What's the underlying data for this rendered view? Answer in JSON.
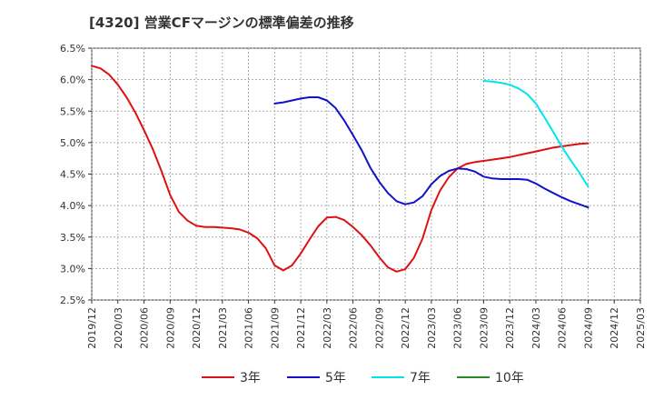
{
  "title": "[4320]  営業CFマージンの標準偏差の推移",
  "chart_data": {
    "type": "line",
    "title": "[4320]  営業CFマージンの標準偏差の推移",
    "xlabel": "",
    "ylabel": "",
    "ylim": [
      2.5,
      6.5
    ],
    "yticks": [
      "6.5%",
      "6.0%",
      "5.5%",
      "5.0%",
      "4.5%",
      "4.0%",
      "3.5%",
      "3.0%",
      "2.5%"
    ],
    "ytick_values": [
      6.5,
      6.0,
      5.5,
      5.0,
      4.5,
      4.0,
      3.5,
      3.0,
      2.5
    ],
    "xticks": [
      "2019/12",
      "2020/03",
      "2020/06",
      "2020/09",
      "2020/12",
      "2021/03",
      "2021/06",
      "2021/09",
      "2021/12",
      "2022/03",
      "2022/06",
      "2022/09",
      "2022/12",
      "2023/03",
      "2023/06",
      "2023/09",
      "2023/12",
      "2024/03",
      "2024/06",
      "2024/09",
      "2024/12",
      "2025/03"
    ],
    "grid": true,
    "legend_position": "bottom",
    "series": [
      {
        "name": "3年",
        "color": "#dd1111",
        "x": [
          "2019/12",
          "2020/01",
          "2020/02",
          "2020/03",
          "2020/04",
          "2020/05",
          "2020/06",
          "2020/07",
          "2020/08",
          "2020/09",
          "2020/10",
          "2020/11",
          "2020/12",
          "2021/01",
          "2021/02",
          "2021/03",
          "2021/04",
          "2021/05",
          "2021/06",
          "2021/07",
          "2021/08",
          "2021/09",
          "2021/10",
          "2021/11",
          "2021/12",
          "2022/01",
          "2022/02",
          "2022/03",
          "2022/04",
          "2022/05",
          "2022/06",
          "2022/07",
          "2022/08",
          "2022/09",
          "2022/10",
          "2022/11",
          "2022/12",
          "2023/01",
          "2023/02",
          "2023/03",
          "2023/04",
          "2023/05",
          "2023/06",
          "2023/07",
          "2023/08",
          "2023/09",
          "2023/10",
          "2023/11",
          "2023/12",
          "2024/01",
          "2024/02",
          "2024/03",
          "2024/04",
          "2024/05",
          "2024/06",
          "2024/07",
          "2024/08",
          "2024/09"
        ],
        "values": [
          6.22,
          6.18,
          6.08,
          5.92,
          5.72,
          5.48,
          5.2,
          4.9,
          4.55,
          4.17,
          3.9,
          3.76,
          3.68,
          3.66,
          3.66,
          3.65,
          3.64,
          3.62,
          3.57,
          3.48,
          3.32,
          3.05,
          2.97,
          3.05,
          3.24,
          3.46,
          3.67,
          3.81,
          3.82,
          3.77,
          3.66,
          3.53,
          3.37,
          3.18,
          3.02,
          2.95,
          2.99,
          3.17,
          3.48,
          3.93,
          4.24,
          4.45,
          4.59,
          4.66,
          4.69,
          4.71,
          4.73,
          4.75,
          4.77,
          4.8,
          4.83,
          4.86,
          4.89,
          4.92,
          4.94,
          4.96,
          4.98,
          4.99
        ]
      },
      {
        "name": "5年",
        "color": "#1111cc",
        "x": [
          "2021/09",
          "2021/10",
          "2021/11",
          "2021/12",
          "2022/01",
          "2022/02",
          "2022/03",
          "2022/04",
          "2022/05",
          "2022/06",
          "2022/07",
          "2022/08",
          "2022/09",
          "2022/10",
          "2022/11",
          "2022/12",
          "2023/01",
          "2023/02",
          "2023/03",
          "2023/04",
          "2023/05",
          "2023/06",
          "2023/07",
          "2023/08",
          "2023/09",
          "2023/10",
          "2023/11",
          "2023/12",
          "2024/01",
          "2024/02",
          "2024/03",
          "2024/04",
          "2024/05",
          "2024/06",
          "2024/07",
          "2024/08",
          "2024/09"
        ],
        "values": [
          5.62,
          5.64,
          5.67,
          5.7,
          5.72,
          5.72,
          5.67,
          5.55,
          5.35,
          5.12,
          4.88,
          4.6,
          4.38,
          4.2,
          4.07,
          4.02,
          4.05,
          4.15,
          4.34,
          4.47,
          4.55,
          4.59,
          4.58,
          4.54,
          4.46,
          4.43,
          4.42,
          4.42,
          4.42,
          4.41,
          4.35,
          4.27,
          4.2,
          4.13,
          4.07,
          4.02,
          3.97
        ]
      },
      {
        "name": "7年",
        "color": "#00e5ee",
        "x": [
          "2023/09",
          "2023/10",
          "2023/11",
          "2023/12",
          "2024/01",
          "2024/02",
          "2024/03",
          "2024/04",
          "2024/05",
          "2024/06",
          "2024/07",
          "2024/08",
          "2024/09"
        ],
        "values": [
          5.98,
          5.97,
          5.95,
          5.92,
          5.86,
          5.77,
          5.62,
          5.4,
          5.17,
          4.93,
          4.72,
          4.52,
          4.3
        ]
      },
      {
        "name": "10年",
        "color": "#228b22",
        "x": [],
        "values": []
      }
    ]
  }
}
